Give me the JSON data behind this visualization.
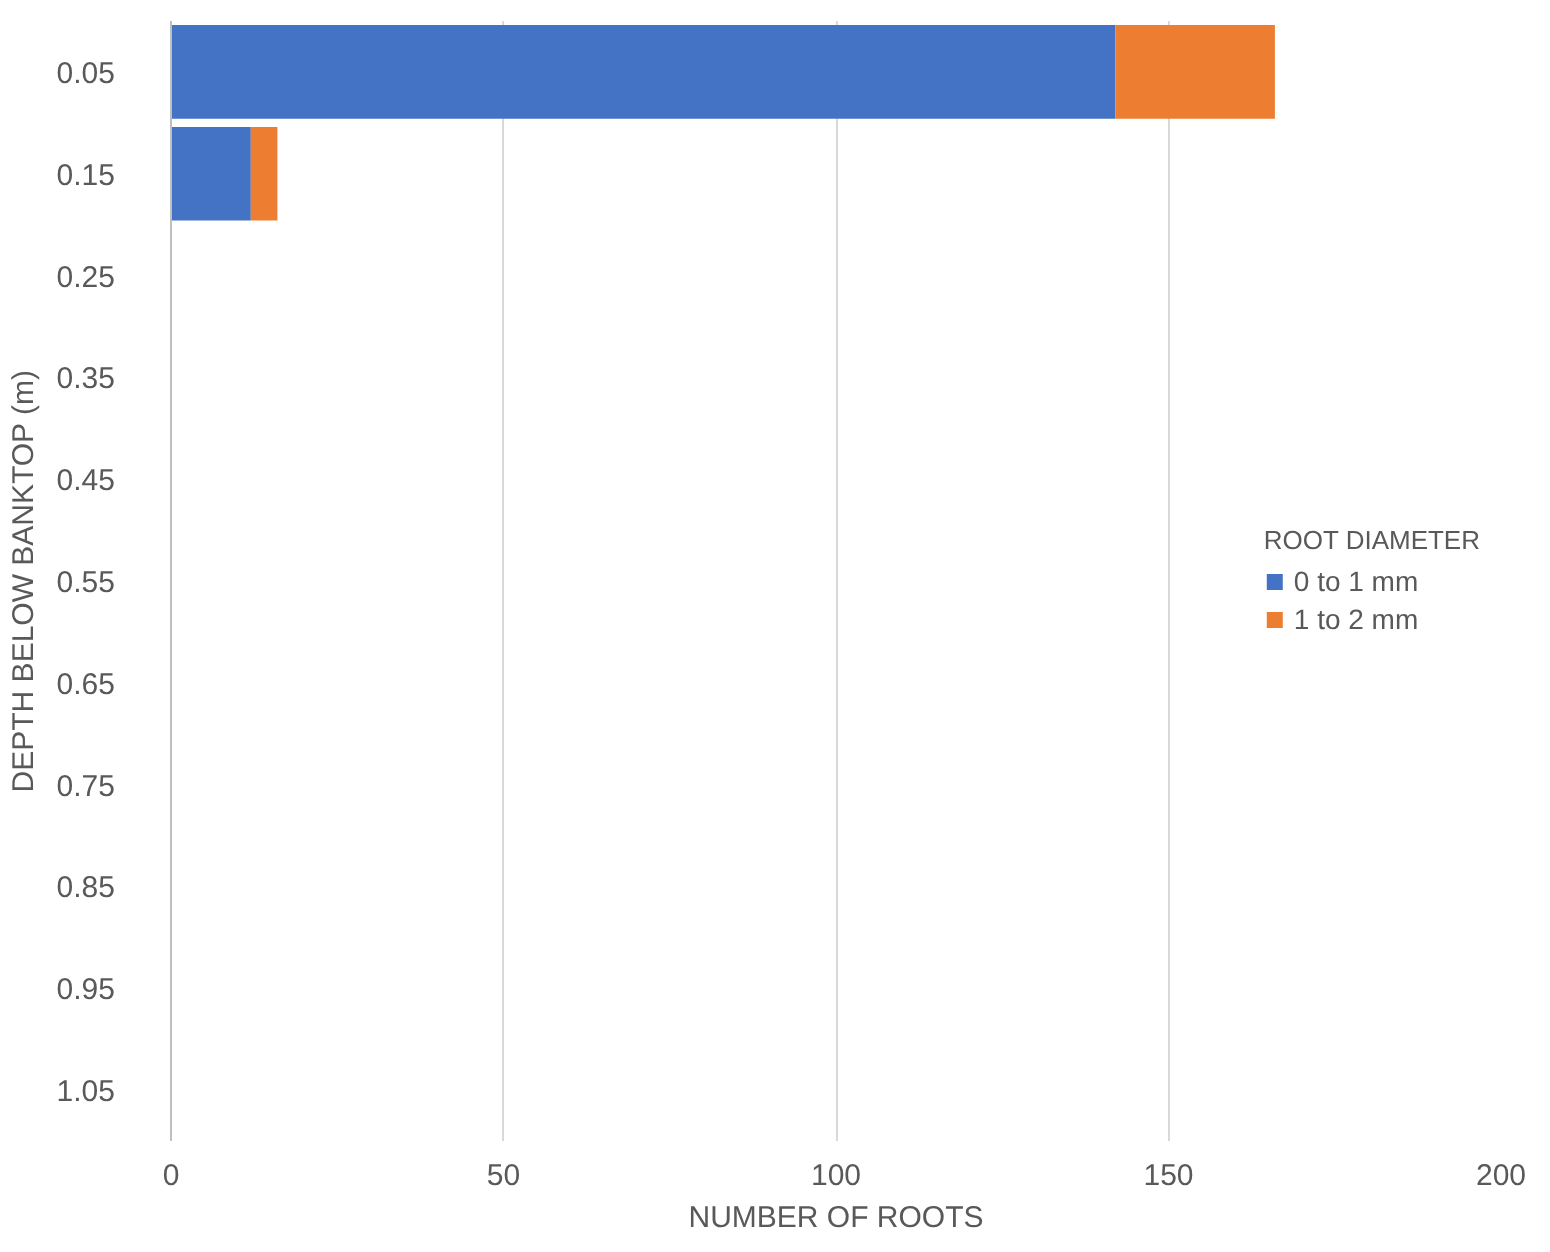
{
  "chart_data": {
    "type": "bar",
    "orientation": "horizontal",
    "stacked": true,
    "xlabel": "NUMBER OF ROOTS",
    "ylabel": "DEPTH BELOW BANKTOP (m)",
    "legend_title": "ROOT DIAMETER",
    "categories": [
      "0.05",
      "0.15",
      "0.25",
      "0.35",
      "0.45",
      "0.55",
      "0.65",
      "0.75",
      "0.85",
      "0.95",
      "1.05"
    ],
    "series": [
      {
        "name": "0 to 1 mm",
        "color": "#4472c4",
        "values": [
          142,
          12,
          0,
          0,
          0,
          0,
          0,
          0,
          0,
          0,
          0
        ]
      },
      {
        "name": "1 to 2 mm",
        "color": "#ed7d31",
        "values": [
          24,
          4,
          0,
          0,
          0,
          0,
          0,
          0,
          0,
          0,
          0
        ]
      }
    ],
    "xlim": [
      0,
      200
    ],
    "xticks": [
      0,
      50,
      100,
      150,
      200
    ],
    "grid": "x",
    "legend": "right"
  }
}
